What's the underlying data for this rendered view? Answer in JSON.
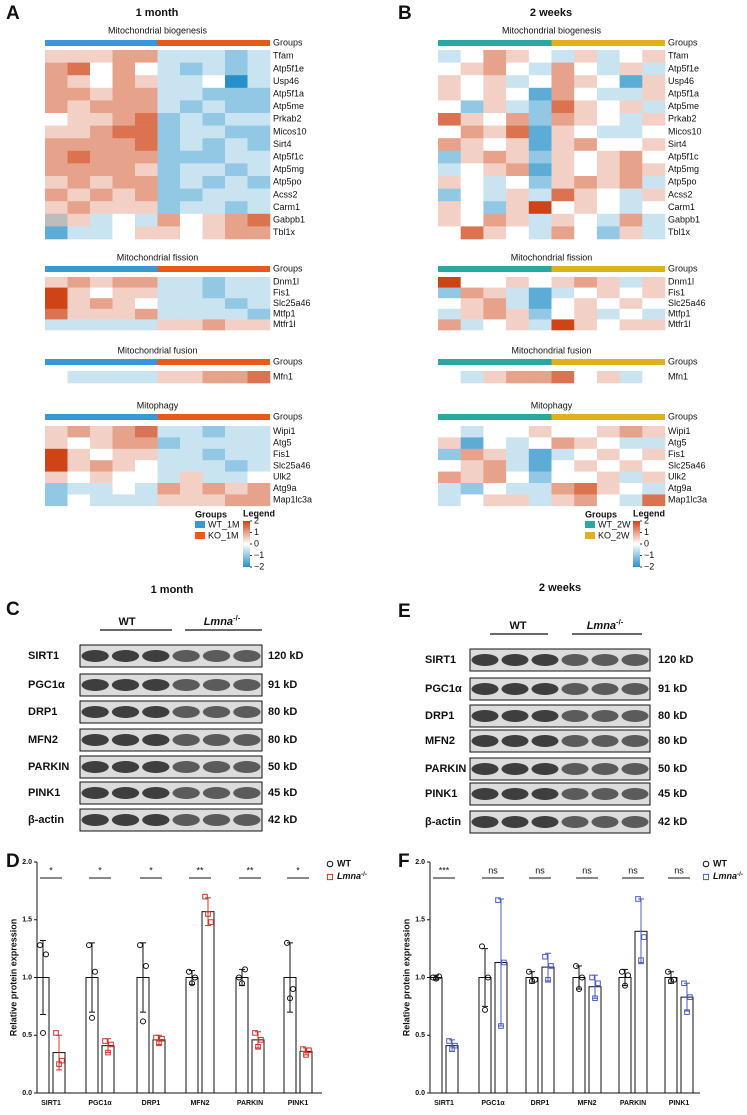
{
  "A": {
    "letter": "A",
    "title": "1 month",
    "groups": [
      {
        "name": "WT_1M",
        "color": "#3b97d3"
      },
      {
        "name": "KO_1M",
        "color": "#e85a1c"
      }
    ],
    "legend": {
      "groups_title": "Groups",
      "title": "Legend",
      "colors": [
        "#2790c8",
        "#ffffff",
        "#cf4416"
      ],
      "lim": [
        -2,
        2
      ],
      "ticks": [
        2,
        1,
        0,
        {
          "value": -1,
          "label": "−1"
        },
        {
          "value": -2,
          "label": "−2"
        }
      ]
    },
    "sections": [
      {
        "title": "Mitochondrial biogenesis",
        "groups_label": "Groups",
        "genes": [
          "Tfam",
          "Atp5f1e",
          "Usp46",
          "Atp5f1a",
          "Atp5me",
          "Prkab2",
          "Micos10",
          "Sirt4",
          "Atp5f1c",
          "Atp5mg",
          "Atp5po",
          "Acss2",
          "Carm1",
          "Gabpb1",
          "Tbl1x"
        ],
        "values": [
          [
            0.5,
            0.5,
            0.5,
            1,
            1,
            -0.5,
            -0.5,
            -0.5,
            -1,
            -0.5
          ],
          [
            1,
            1.5,
            0,
            1,
            0,
            -0.5,
            -1,
            -0.5,
            -1,
            -0.5
          ],
          [
            1,
            0.5,
            0,
            1,
            0.5,
            -0.5,
            -0.5,
            0,
            -2,
            -0.5
          ],
          [
            1,
            1,
            0.5,
            1,
            1,
            -0.5,
            -0.5,
            -1,
            -1,
            -1
          ],
          [
            1,
            0.5,
            1,
            1,
            1,
            -0.5,
            -1,
            -0.5,
            -1,
            -1
          ],
          [
            0,
            0.5,
            0.5,
            1,
            1.5,
            -1,
            -0.5,
            -1,
            -0.5,
            -0.5
          ],
          [
            0.5,
            0.5,
            1,
            1.5,
            1.5,
            -1,
            -0.5,
            -0.5,
            -1,
            -1
          ],
          [
            1,
            1,
            1,
            1,
            1.5,
            -1,
            -0.5,
            -1,
            -0.5,
            -1
          ],
          [
            1,
            1.5,
            1,
            1,
            1,
            -1,
            -1,
            -1,
            -0.5,
            -0.5
          ],
          [
            1,
            1,
            1,
            1,
            0.5,
            -1,
            -0.5,
            -0.5,
            -1,
            -0.5
          ],
          [
            0.5,
            1,
            0.5,
            1,
            1,
            -1,
            -0.5,
            -1,
            -0.5,
            -1
          ],
          [
            1,
            0.5,
            1,
            0.5,
            1,
            -1,
            -1,
            -0.5,
            -0.5,
            -0.5
          ],
          [
            0.5,
            1,
            0.5,
            0.5,
            0.5,
            -1,
            -0.5,
            -0.5,
            -1,
            -0.5
          ],
          [
            null,
            0.5,
            -0.5,
            0,
            -0.5,
            1,
            0,
            0.5,
            1,
            1.5
          ],
          [
            -1.5,
            -0.5,
            -0.5,
            0,
            0.5,
            0.5,
            0,
            0.5,
            1,
            1
          ]
        ]
      },
      {
        "title": "Mitochondrial fission",
        "groups_label": "Groups",
        "genes": [
          "Dnm1l",
          "Fis1",
          "Slc25a46",
          "Mtfp1",
          "Mtfr1l"
        ],
        "values": [
          [
            0.5,
            1,
            0.5,
            1,
            1,
            -0.5,
            -0.5,
            -1,
            -0.5,
            -0.5
          ],
          [
            2,
            0.5,
            0,
            0.5,
            0.5,
            -0.5,
            -0.5,
            -1,
            -0.5,
            -0.5
          ],
          [
            2,
            0.5,
            1,
            0.5,
            0,
            -0.5,
            -0.5,
            -0.5,
            -1,
            -0.5
          ],
          [
            1.5,
            0.5,
            0.5,
            0.5,
            1,
            -0.5,
            -0.5,
            -0.5,
            -0.5,
            -1
          ],
          [
            -0.5,
            -0.5,
            -0.5,
            -0.5,
            -0.5,
            0.5,
            0.5,
            1,
            0.5,
            0.5
          ]
        ]
      },
      {
        "title": "Mitochondrial fusion",
        "groups_label": "Groups",
        "genes": [
          "Mfn1"
        ],
        "values": [
          [
            0,
            -0.5,
            -0.5,
            -0.5,
            -0.5,
            0.5,
            0.5,
            1,
            1,
            1.5
          ]
        ]
      },
      {
        "title": "Mitophagy",
        "groups_label": "Groups",
        "genes": [
          "Wipi1",
          "Atg5",
          "Fis1",
          "Slc25a46",
          "Ulk2",
          "Atg9a",
          "Map1lc3a"
        ],
        "values": [
          [
            0.5,
            1,
            0.5,
            1,
            1.5,
            -0.5,
            -0.5,
            -1,
            -0.5,
            -0.5
          ],
          [
            0.5,
            0,
            0.5,
            1,
            1,
            -1,
            -0.5,
            -0.5,
            -0.5,
            -0.5
          ],
          [
            2,
            0.5,
            0,
            0.5,
            0.5,
            -0.5,
            -0.5,
            -1,
            -0.5,
            -0.5
          ],
          [
            2,
            0.5,
            1,
            0.5,
            0,
            -0.5,
            -0.5,
            -0.5,
            -1,
            -0.5
          ],
          [
            0.5,
            0,
            0.5,
            0,
            0,
            -0.5,
            0.5,
            -0.5,
            -0.5,
            0
          ],
          [
            -1,
            -0.5,
            -0.5,
            0,
            -0.5,
            1,
            0.5,
            1,
            0.5,
            1
          ],
          [
            -1,
            0,
            -0.5,
            -0.5,
            -0.5,
            0.5,
            0.5,
            0.5,
            1,
            1
          ]
        ]
      }
    ]
  },
  "B": {
    "letter": "B",
    "title": "2 weeks",
    "groups": [
      {
        "name": "WT_2W",
        "color": "#2aa79f"
      },
      {
        "name": "KO_2W",
        "color": "#dfb21d"
      }
    ],
    "legend": {
      "groups_title": "Groups",
      "title": "Legend",
      "colors": [
        "#2790c8",
        "#ffffff",
        "#cf4416"
      ],
      "lim": [
        -2,
        2
      ],
      "ticks": [
        2,
        1,
        0,
        {
          "value": -1,
          "label": "−1"
        },
        {
          "value": -2,
          "label": "−2"
        }
      ]
    },
    "sections": [
      {
        "title": "Mitochondrial biogenesis",
        "groups_label": "Groups",
        "genes": [
          "Tfam",
          "Atp5f1e",
          "Usp46",
          "Atp5f1a",
          "Atp5me",
          "Prkab2",
          "Micos10",
          "Sirt4",
          "Atp5f1c",
          "Atp5mg",
          "Atp5po",
          "Acss2",
          "Carm1",
          "Gabpb1",
          "Tbl1x"
        ],
        "values": [
          [
            -0.5,
            0,
            1,
            0.5,
            0,
            -0.5,
            0.5,
            -0.5,
            0,
            0.5
          ],
          [
            0,
            0.5,
            1,
            0,
            -0.5,
            1,
            0,
            -0.5,
            0.5,
            -0.5
          ],
          [
            0.5,
            0,
            0.5,
            -0.5,
            0,
            1,
            0.5,
            0,
            -1.5,
            0.5
          ],
          [
            0.5,
            0,
            0.5,
            0,
            -1.5,
            1,
            0,
            -0.5,
            -0.5,
            0.5
          ],
          [
            0,
            -1,
            0.5,
            -0.5,
            -1,
            1.5,
            0.5,
            0,
            0.5,
            -0.5
          ],
          [
            1.5,
            0.5,
            0,
            1,
            -1,
            1,
            0.5,
            0,
            -0.5,
            0.5
          ],
          [
            0,
            1,
            0.5,
            1.5,
            -1.5,
            0.5,
            0,
            -0.5,
            -0.5,
            0
          ],
          [
            1,
            0.5,
            0,
            0.5,
            -1.5,
            0.5,
            1,
            0,
            0,
            0.5
          ],
          [
            -1,
            0.5,
            1,
            0.5,
            -1,
            0.5,
            0,
            0.5,
            1,
            0
          ],
          [
            -0.5,
            0,
            0.5,
            1,
            -1.5,
            0.5,
            0,
            0.5,
            1,
            0.5
          ],
          [
            0.5,
            0,
            -0.5,
            0,
            -1,
            0.5,
            1,
            0.5,
            1,
            -0.5
          ],
          [
            -1,
            0,
            -0.5,
            0.5,
            -0.5,
            1.5,
            0.5,
            0,
            -0.5,
            0.5
          ],
          [
            0.5,
            0,
            -1,
            0.5,
            2,
            0,
            0.5,
            0,
            -0.5,
            0
          ],
          [
            0.5,
            0,
            1,
            0.5,
            -0.5,
            0.5,
            0,
            -0.5,
            1,
            -0.5
          ],
          [
            0,
            1.5,
            0.5,
            0,
            -0.5,
            1,
            0,
            -1,
            0.5,
            -0.5
          ]
        ]
      },
      {
        "title": "Mitochondrial fission",
        "groups_label": "Groups",
        "genes": [
          "Dnm1l",
          "Fis1",
          "Slc25a46",
          "Mtfp1",
          "Mtfr1l"
        ],
        "values": [
          [
            2,
            0,
            0,
            0.5,
            0,
            0.5,
            1,
            0.5,
            -0.5,
            0.5
          ],
          [
            -1,
            1,
            0.5,
            -0.5,
            -1.5,
            -0.5,
            0,
            0.5,
            0,
            0.5
          ],
          [
            0,
            0.5,
            1,
            -0.5,
            -1.5,
            0,
            0.5,
            0,
            0.5,
            0
          ],
          [
            -0.5,
            0.5,
            1,
            0.5,
            -1,
            0,
            0.5,
            -0.5,
            0,
            -0.5
          ],
          [
            1,
            -0.5,
            0,
            0.5,
            -0.5,
            2,
            0.5,
            0,
            0.5,
            0.5
          ]
        ]
      },
      {
        "title": "Mitochondrial fusion",
        "groups_label": "Groups",
        "genes": [
          "Mfn1"
        ],
        "values": [
          [
            0,
            -0.5,
            0.5,
            1,
            1,
            1.5,
            0,
            0.5,
            -0.5,
            0
          ]
        ]
      },
      {
        "title": "Mitophagy",
        "groups_label": "Groups",
        "genes": [
          "Wipi1",
          "Atg5",
          "Fis1",
          "Slc25a46",
          "Ulk2",
          "Atg9a",
          "Map1lc3a"
        ],
        "values": [
          [
            0,
            -0.5,
            0,
            0,
            0.5,
            0,
            0,
            0.5,
            1,
            0.5
          ],
          [
            0.5,
            -1.5,
            0,
            -0.5,
            0,
            1,
            0.5,
            0,
            -0.5,
            -0.5
          ],
          [
            -1,
            1,
            0.5,
            -0.5,
            -1.5,
            -0.5,
            0,
            0.5,
            0,
            0.5
          ],
          [
            0,
            0.5,
            1,
            -0.5,
            -1.5,
            0,
            0.5,
            0,
            0.5,
            0
          ],
          [
            1,
            0.5,
            1,
            0,
            -1,
            0,
            0,
            0.5,
            -0.5,
            0.5
          ],
          [
            -0.5,
            -1,
            0,
            -0.5,
            -0.5,
            1,
            1.5,
            0.5,
            0,
            -0.5
          ],
          [
            -0.5,
            0,
            0.5,
            0.5,
            -0.5,
            0.5,
            1,
            0,
            -0.5,
            1.5
          ]
        ]
      }
    ]
  },
  "C": {
    "letter": "C",
    "title": "1 month",
    "groups": [
      "WT",
      {
        "name": "Lmna",
        "superscript": "-/-"
      }
    ],
    "proteins": [
      "SIRT1",
      "PGC1α",
      "DRP1",
      "MFN2",
      "PARKIN",
      "PINK1",
      "β-actin"
    ],
    "sizes": [
      "120 kD",
      "91 kD",
      "80 kD",
      "80 kD",
      "50 kD",
      "45 kD",
      "42 kD"
    ]
  },
  "E": {
    "letter": "E",
    "title": "2 weeks",
    "groups": [
      "WT",
      {
        "name": "Lmna",
        "superscript": "-/-"
      }
    ],
    "proteins": [
      "SIRT1",
      "PGC1α",
      "DRP1",
      "MFN2",
      "PARKIN",
      "PINK1",
      "β-actin"
    ],
    "sizes": [
      "120 kD",
      "91 kD",
      "80 kD",
      "80 kD",
      "50 kD",
      "45 kD",
      "42 kD"
    ]
  },
  "D": {
    "letter": "D",
    "y_label": "Relative protein expression",
    "ylim": [
      0,
      2
    ],
    "yticks": [
      {
        "value": 0,
        "label": "0.0"
      },
      0.5,
      {
        "value": 1,
        "label": "1.0"
      },
      1.5,
      {
        "value": 2,
        "label": "2.0"
      }
    ],
    "categories": [
      "SIRT1",
      "PGC1α",
      "DRP1",
      "MFN2",
      "PARKIN",
      "PINK1"
    ],
    "significance": [
      "*",
      "*",
      "*",
      "**",
      "**",
      "*"
    ],
    "series": [
      {
        "name": "WT",
        "color": "#111111",
        "marker": "circle",
        "values": [
          1,
          1,
          1,
          1,
          1,
          1
        ],
        "errors": [
          0.32,
          0.3,
          0.3,
          0.06,
          0.07,
          0.3
        ],
        "points": [
          [
            1.28,
            0.52,
            1.2
          ],
          [
            1.28,
            0.65,
            1.05
          ],
          [
            1.28,
            0.62,
            1.1
          ],
          [
            1.05,
            0.95,
            1.0
          ],
          [
            1.0,
            0.95,
            1.07
          ],
          [
            1.3,
            0.82,
            0.9
          ]
        ]
      },
      {
        "name": {
          "name": "Lmna",
          "superscript": "-/-"
        },
        "color": "#d0352b",
        "marker": "square",
        "values": [
          0.35,
          0.41,
          0.46,
          1.57,
          0.46,
          0.36
        ],
        "errors": [
          0.15,
          0.06,
          0.04,
          0.12,
          0.07,
          0.03
        ],
        "points": [
          [
            0.52,
            0.25,
            0.28
          ],
          [
            0.45,
            0.35,
            0.42
          ],
          [
            0.48,
            0.43,
            0.47
          ],
          [
            1.7,
            1.55,
            1.48
          ],
          [
            0.52,
            0.4,
            0.46
          ],
          [
            0.38,
            0.33,
            0.37
          ]
        ]
      }
    ]
  },
  "F": {
    "letter": "F",
    "y_label": "Relative protein expression",
    "ylim": [
      0,
      2
    ],
    "yticks": [
      {
        "value": 0,
        "label": "0.0"
      },
      0.5,
      {
        "value": 1,
        "label": "1.0"
      },
      1.5,
      {
        "value": 2,
        "label": "2.0"
      }
    ],
    "categories": [
      "SIRT1",
      "PGC1α",
      "DRP1",
      "MFN2",
      "PARKIN",
      "PINK1"
    ],
    "significance": [
      "***",
      "ns",
      "ns",
      "ns",
      "ns",
      "ns"
    ],
    "series": [
      {
        "name": "WT",
        "color": "#111111",
        "marker": "circle",
        "values": [
          1,
          1,
          1,
          1,
          1,
          1
        ],
        "errors": [
          0.02,
          0.25,
          0.05,
          0.1,
          0.07,
          0.05
        ],
        "points": [
          [
            1.0,
            0.99,
            1.01
          ],
          [
            1.27,
            0.72,
            1.0
          ],
          [
            1.05,
            0.97,
            0.98
          ],
          [
            1.1,
            0.9,
            1.0
          ],
          [
            1.05,
            0.93,
            1.02
          ],
          [
            1.05,
            0.97,
            0.98
          ]
        ]
      },
      {
        "name": {
          "name": "Lmna",
          "superscript": "-/-"
        },
        "color": "#4a5fc1",
        "marker": "square",
        "values": [
          0.41,
          1.13,
          1.09,
          0.92,
          1.4,
          0.83
        ],
        "errors": [
          0.05,
          0.55,
          0.12,
          0.1,
          0.28,
          0.12
        ],
        "points": [
          [
            0.45,
            0.38,
            0.41
          ],
          [
            1.67,
            0.58,
            1.13
          ],
          [
            1.18,
            0.98,
            1.1
          ],
          [
            1.0,
            0.82,
            0.95
          ],
          [
            1.68,
            1.15,
            1.35
          ],
          [
            0.95,
            0.7,
            0.83
          ]
        ]
      }
    ]
  }
}
